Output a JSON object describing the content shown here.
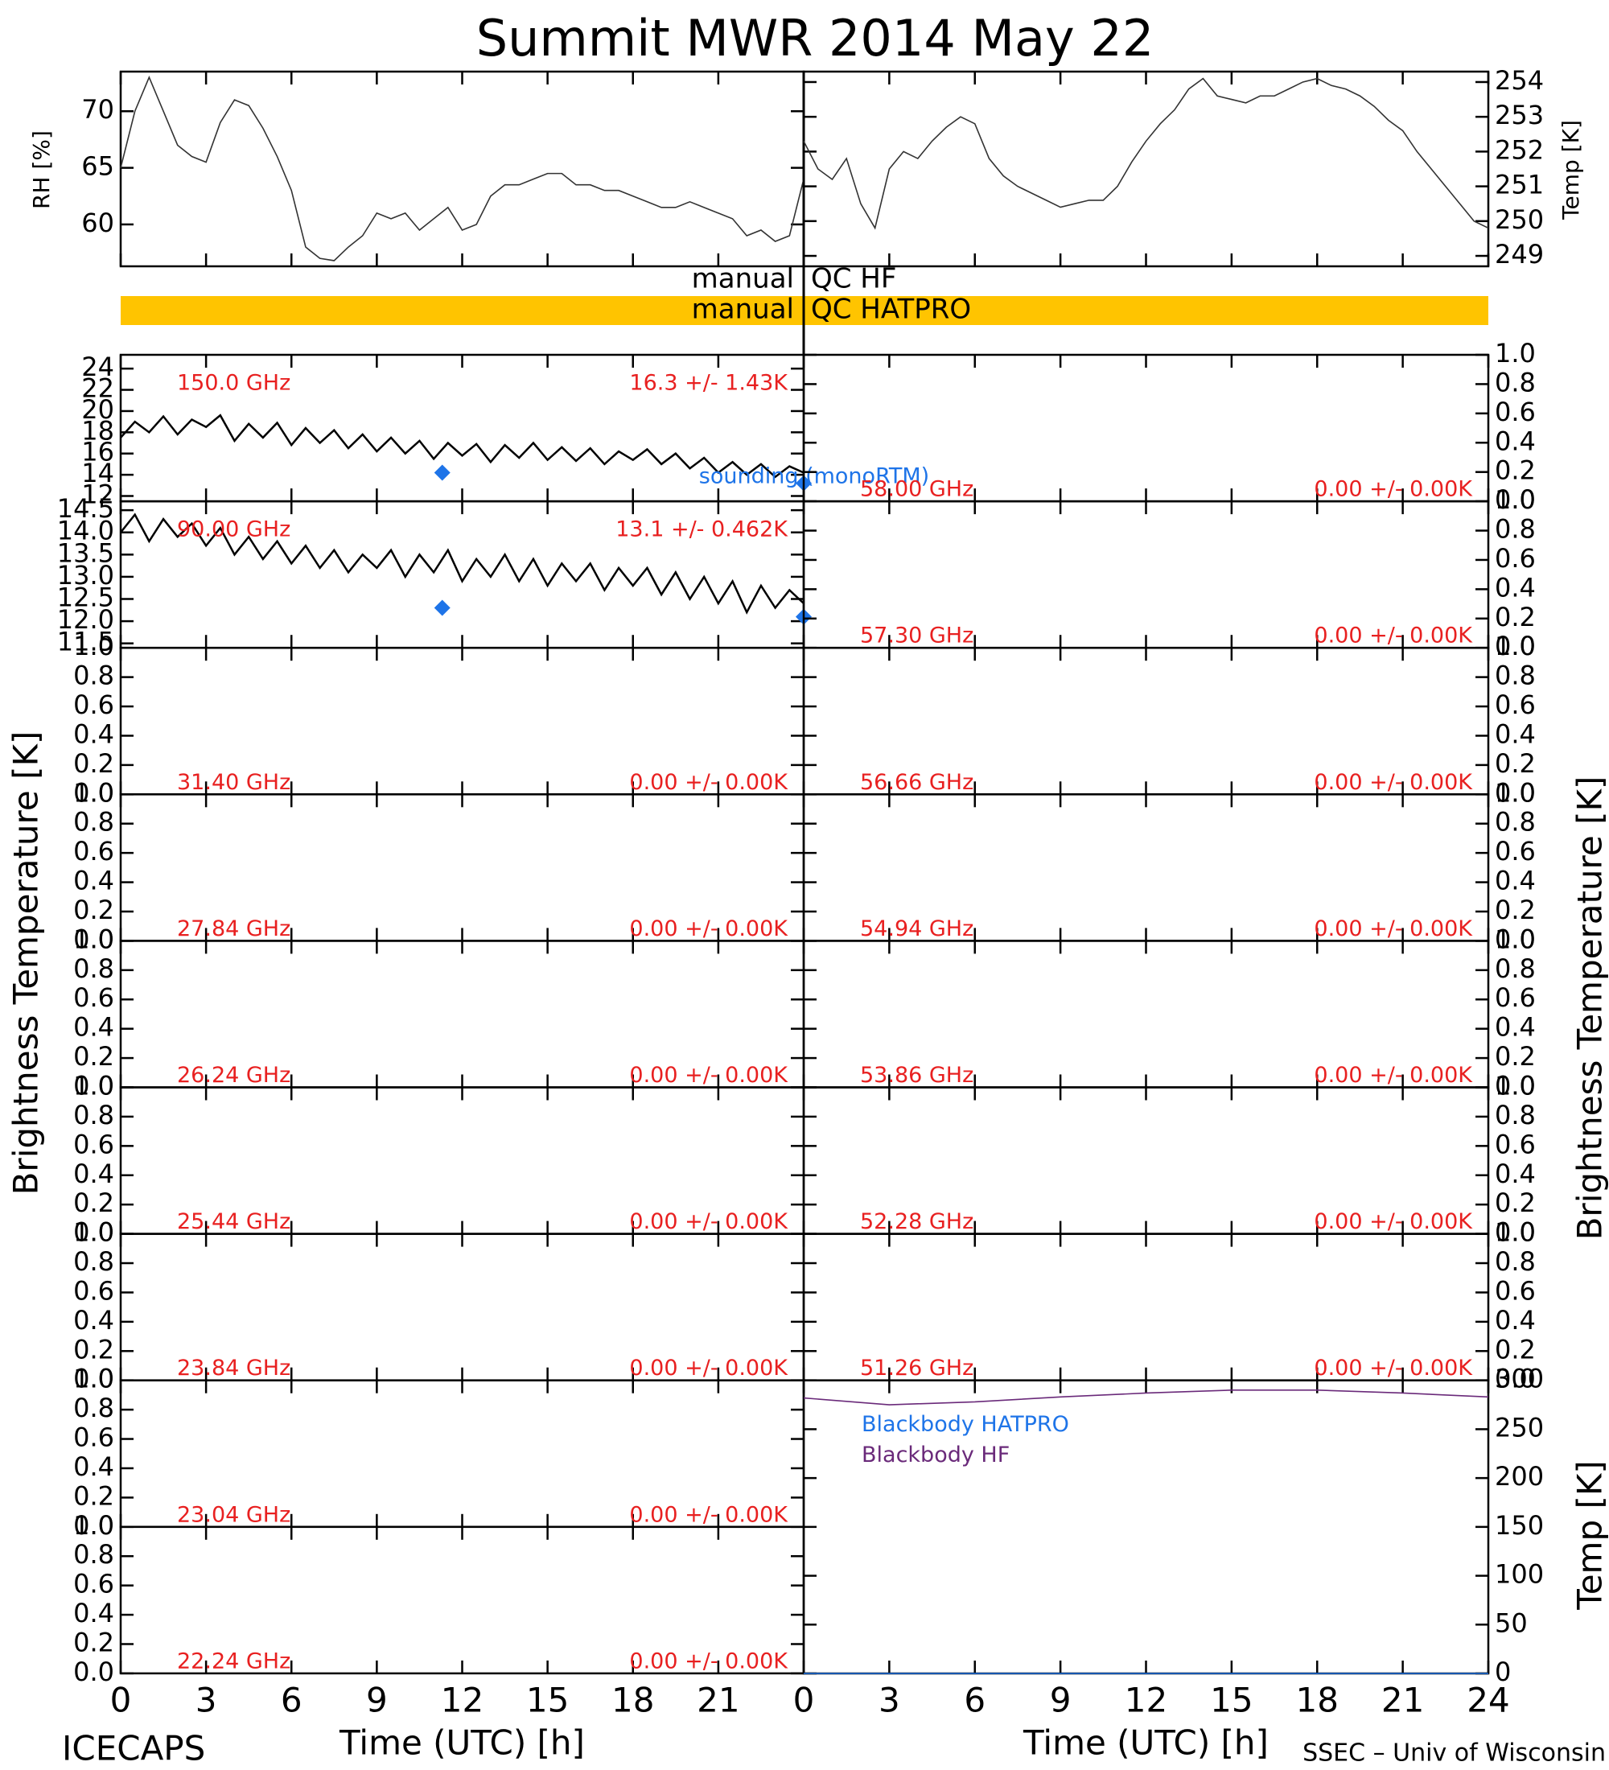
{
  "title": "Summit MWR 2014 May 22",
  "footer_left": "ICECAPS",
  "footer_right": "SSEC – Univ of Wisconsin",
  "ylabel_left": "Brightness Temperature [K]",
  "ylabel_right": "Brightness Temperature [K]",
  "qc": [
    {
      "left": "manual",
      "right": "QC HF"
    },
    {
      "left": "manual",
      "right": "QC HATPRO",
      "color": "#ffc400"
    }
  ],
  "chart_data": [
    {
      "type": "line",
      "ylabel": "RH [%]",
      "xlim": [
        0,
        24
      ],
      "ylim": [
        56.3,
        73.5
      ],
      "yticks": [
        60,
        65,
        70
      ],
      "x": [
        0,
        0.5,
        1,
        1.5,
        2,
        2.5,
        3,
        3.5,
        4,
        4.5,
        5,
        5.5,
        6,
        6.5,
        7,
        7.5,
        8,
        8.5,
        9,
        9.5,
        10,
        10.5,
        11,
        11.5,
        12,
        12.5,
        13,
        13.5,
        14,
        14.5,
        15,
        15.5,
        16,
        16.5,
        17,
        17.5,
        18,
        18.5,
        19,
        19.5,
        20,
        20.5,
        21,
        21.5,
        22,
        22.5,
        23,
        23.5,
        24
      ],
      "series": [
        {
          "color": "#333333",
          "values": [
            65,
            70,
            73,
            70,
            67,
            66,
            65.5,
            69,
            71,
            70.5,
            68.5,
            66,
            63,
            58,
            57,
            56.8,
            58,
            59,
            61,
            60.5,
            61,
            59.5,
            60.5,
            61.5,
            59.5,
            60,
            62.5,
            63.5,
            63.5,
            64,
            64.5,
            64.5,
            63.5,
            63.5,
            63,
            63,
            62.5,
            62,
            61.5,
            61.5,
            62,
            61.5,
            61,
            60.5,
            59,
            59.5,
            58.5,
            59,
            64
          ]
        }
      ]
    },
    {
      "type": "line",
      "ylabel": "Temp [K]",
      "xlim": [
        0,
        24
      ],
      "ylim": [
        248.7,
        254.3
      ],
      "yticks": [
        249,
        250,
        251,
        252,
        253,
        254
      ],
      "x": [
        0,
        0.5,
        1,
        1.5,
        2,
        2.5,
        3,
        3.5,
        4,
        4.5,
        5,
        5.5,
        6,
        6.5,
        7,
        7.5,
        8,
        8.5,
        9,
        9.5,
        10,
        10.5,
        11,
        11.5,
        12,
        12.5,
        13,
        13.5,
        14,
        14.5,
        15,
        15.5,
        16,
        16.5,
        17,
        17.5,
        18,
        18.5,
        19,
        19.5,
        20,
        20.5,
        21,
        21.5,
        22,
        22.5,
        23,
        23.5,
        24
      ],
      "series": [
        {
          "color": "#333333",
          "values": [
            252.3,
            251.5,
            251.2,
            251.8,
            250.5,
            249.8,
            251.5,
            252,
            251.8,
            252.3,
            252.7,
            253,
            252.8,
            251.8,
            251.3,
            251,
            250.8,
            250.6,
            250.4,
            250.5,
            250.6,
            250.6,
            251,
            251.7,
            252.3,
            252.8,
            253.2,
            253.8,
            254.1,
            253.6,
            253.5,
            253.4,
            253.6,
            253.6,
            253.8,
            254,
            254.1,
            253.9,
            253.8,
            253.6,
            253.3,
            252.9,
            252.6,
            252,
            251.5,
            251,
            250.5,
            250,
            249.8
          ]
        }
      ]
    },
    {
      "type": "line",
      "label": "150.0 GHz",
      "stat": "16.3 +/-  1.43K",
      "xlim": [
        0,
        24
      ],
      "ylim": [
        11.5,
        25.3
      ],
      "yticks": [
        12,
        14,
        16,
        18,
        20,
        22,
        24
      ],
      "x": [
        0,
        0.5,
        1,
        1.5,
        2,
        2.5,
        3,
        3.5,
        4,
        4.5,
        5,
        5.5,
        6,
        6.5,
        7,
        7.5,
        8,
        8.5,
        9,
        9.5,
        10,
        10.5,
        11,
        11.5,
        12,
        12.5,
        13,
        13.5,
        14,
        14.5,
        15,
        15.5,
        16,
        16.5,
        17,
        17.5,
        18,
        18.5,
        19,
        19.5,
        20,
        20.5,
        21,
        21.5,
        22,
        22.5,
        23,
        23.5,
        24
      ],
      "series": [
        {
          "color": "#000000",
          "values": [
            17.5,
            19,
            18,
            19.5,
            17.8,
            19.2,
            18.5,
            19.6,
            17.2,
            18.8,
            17.5,
            18.9,
            16.8,
            18.4,
            17,
            18.2,
            16.5,
            17.8,
            16.2,
            17.5,
            16,
            17.2,
            15.5,
            17,
            15.8,
            16.9,
            15.2,
            16.8,
            15.6,
            17,
            15.4,
            16.6,
            15.3,
            16.5,
            15,
            16.2,
            15.4,
            16.4,
            15,
            16,
            14.6,
            15.6,
            14.2,
            15.2,
            14,
            15,
            13.8,
            14.8,
            14.2
          ]
        },
        {
          "name": "sounding (monoRTM)",
          "color": "#1e74e8",
          "marker": "diamond",
          "x": [
            11.3,
            24
          ],
          "values": [
            14.2,
            13.2
          ]
        }
      ]
    },
    {
      "type": "line",
      "label": "90.00 GHz",
      "stat": "13.1 +/- 0.462K",
      "xlim": [
        0,
        24
      ],
      "ylim": [
        11.4,
        14.7
      ],
      "yticks": [
        11.5,
        {
          "value": 12,
          "label": "12.0"
        },
        12.5,
        {
          "value": 13,
          "label": "13.0"
        },
        13.5,
        {
          "value": 14,
          "label": "14.0"
        },
        14.5
      ],
      "x": [
        0,
        0.5,
        1,
        1.5,
        2,
        2.5,
        3,
        3.5,
        4,
        4.5,
        5,
        5.5,
        6,
        6.5,
        7,
        7.5,
        8,
        8.5,
        9,
        9.5,
        10,
        10.5,
        11,
        11.5,
        12,
        12.5,
        13,
        13.5,
        14,
        14.5,
        15,
        15.5,
        16,
        16.5,
        17,
        17.5,
        18,
        18.5,
        19,
        19.5,
        20,
        20.5,
        21,
        21.5,
        22,
        22.5,
        23,
        23.5,
        24
      ],
      "series": [
        {
          "color": "#000000",
          "values": [
            14.0,
            14.4,
            13.8,
            14.3,
            13.9,
            14.2,
            13.7,
            14.1,
            13.5,
            13.9,
            13.4,
            13.8,
            13.3,
            13.7,
            13.2,
            13.6,
            13.1,
            13.5,
            13.2,
            13.6,
            13.0,
            13.5,
            13.1,
            13.6,
            12.9,
            13.4,
            13.0,
            13.5,
            12.9,
            13.4,
            12.8,
            13.3,
            12.9,
            13.3,
            12.7,
            13.2,
            12.8,
            13.2,
            12.6,
            13.1,
            12.5,
            13.0,
            12.4,
            12.9,
            12.2,
            12.8,
            12.3,
            12.7,
            12.4
          ]
        },
        {
          "color": "#1e74e8",
          "marker": "diamond",
          "x": [
            11.3,
            24
          ],
          "values": [
            12.3,
            12.1
          ]
        }
      ]
    },
    {
      "type": "line",
      "label": "31.40 GHz",
      "stat": "0.00 +/- 0.00K",
      "xlim": [
        0,
        24
      ],
      "ylim": [
        0,
        1
      ],
      "yticks": [
        {
          "value": 0,
          "label": "0.0"
        },
        0.2,
        0.4,
        0.6,
        0.8,
        {
          "value": 1,
          "label": "1.0"
        }
      ]
    },
    {
      "type": "line",
      "label": "27.84 GHz",
      "stat": "0.00 +/- 0.00K",
      "xlim": [
        0,
        24
      ],
      "ylim": [
        0,
        1
      ],
      "yticks": [
        {
          "value": 0,
          "label": "0.0"
        },
        0.2,
        0.4,
        0.6,
        0.8,
        {
          "value": 1,
          "label": "1.0"
        }
      ]
    },
    {
      "type": "line",
      "label": "26.24 GHz",
      "stat": "0.00 +/- 0.00K",
      "xlim": [
        0,
        24
      ],
      "ylim": [
        0,
        1
      ],
      "yticks": [
        {
          "value": 0,
          "label": "0.0"
        },
        0.2,
        0.4,
        0.6,
        0.8,
        {
          "value": 1,
          "label": "1.0"
        }
      ]
    },
    {
      "type": "line",
      "label": "25.44 GHz",
      "stat": "0.00 +/- 0.00K",
      "xlim": [
        0,
        24
      ],
      "ylim": [
        0,
        1
      ],
      "yticks": [
        {
          "value": 0,
          "label": "0.0"
        },
        0.2,
        0.4,
        0.6,
        0.8,
        {
          "value": 1,
          "label": "1.0"
        }
      ]
    },
    {
      "type": "line",
      "label": "23.84 GHz",
      "stat": "0.00 +/- 0.00K",
      "xlim": [
        0,
        24
      ],
      "ylim": [
        0,
        1
      ],
      "yticks": [
        {
          "value": 0,
          "label": "0.0"
        },
        0.2,
        0.4,
        0.6,
        0.8,
        {
          "value": 1,
          "label": "1.0"
        }
      ]
    },
    {
      "type": "line",
      "label": "23.04 GHz",
      "stat": "0.00 +/- 0.00K",
      "xlim": [
        0,
        24
      ],
      "ylim": [
        0,
        1
      ],
      "yticks": [
        {
          "value": 0,
          "label": "0.0"
        },
        0.2,
        0.4,
        0.6,
        0.8,
        {
          "value": 1,
          "label": "1.0"
        }
      ]
    },
    {
      "type": "line",
      "label": "22.24 GHz",
      "stat": "0.00 +/- 0.00K",
      "xlabel": "Time (UTC) [h]",
      "xlim": [
        0,
        24
      ],
      "xticks": [
        0,
        3,
        6,
        9,
        12,
        15,
        18,
        21
      ],
      "ylim": [
        0,
        1
      ],
      "yticks": [
        {
          "value": 0,
          "label": "0.0"
        },
        0.2,
        0.4,
        0.6,
        0.8,
        {
          "value": 1,
          "label": "1.0"
        }
      ]
    },
    {
      "type": "line",
      "label": "58.00 GHz",
      "stat": "0.00 +/- 0.00K",
      "xlim": [
        0,
        24
      ],
      "ylim": [
        0,
        1
      ],
      "yticks": [
        {
          "value": 0,
          "label": "0.0"
        },
        0.2,
        0.4,
        0.6,
        0.8,
        {
          "value": 1,
          "label": "1.0"
        }
      ]
    },
    {
      "type": "line",
      "label": "57.30 GHz",
      "stat": "0.00 +/- 0.00K",
      "xlim": [
        0,
        24
      ],
      "ylim": [
        0,
        1
      ],
      "yticks": [
        {
          "value": 0,
          "label": "0.0"
        },
        0.2,
        0.4,
        0.6,
        0.8,
        {
          "value": 1,
          "label": "1.0"
        }
      ]
    },
    {
      "type": "line",
      "label": "56.66 GHz",
      "stat": "0.00 +/- 0.00K",
      "xlim": [
        0,
        24
      ],
      "ylim": [
        0,
        1
      ],
      "yticks": [
        {
          "value": 0,
          "label": "0.0"
        },
        0.2,
        0.4,
        0.6,
        0.8,
        {
          "value": 1,
          "label": "1.0"
        }
      ]
    },
    {
      "type": "line",
      "label": "54.94 GHz",
      "stat": "0.00 +/- 0.00K",
      "xlim": [
        0,
        24
      ],
      "ylim": [
        0,
        1
      ],
      "yticks": [
        {
          "value": 0,
          "label": "0.0"
        },
        0.2,
        0.4,
        0.6,
        0.8,
        {
          "value": 1,
          "label": "1.0"
        }
      ]
    },
    {
      "type": "line",
      "label": "53.86 GHz",
      "stat": "0.00 +/- 0.00K",
      "xlim": [
        0,
        24
      ],
      "ylim": [
        0,
        1
      ],
      "yticks": [
        {
          "value": 0,
          "label": "0.0"
        },
        0.2,
        0.4,
        0.6,
        0.8,
        {
          "value": 1,
          "label": "1.0"
        }
      ]
    },
    {
      "type": "line",
      "label": "52.28 GHz",
      "stat": "0.00 +/- 0.00K",
      "xlim": [
        0,
        24
      ],
      "ylim": [
        0,
        1
      ],
      "yticks": [
        {
          "value": 0,
          "label": "0.0"
        },
        0.2,
        0.4,
        0.6,
        0.8,
        {
          "value": 1,
          "label": "1.0"
        }
      ]
    },
    {
      "type": "line",
      "label": "51.26 GHz",
      "stat": "0.00 +/- 0.00K",
      "xlim": [
        0,
        24
      ],
      "ylim": [
        0,
        1
      ],
      "yticks": [
        {
          "value": 0,
          "label": "0.0"
        },
        0.2,
        0.4,
        0.6,
        0.8,
        {
          "value": 1,
          "label": "1.0"
        }
      ]
    },
    {
      "type": "line",
      "ylabel": "Temp [K]",
      "xlabel": "Time (UTC) [h]",
      "xlim": [
        0,
        24
      ],
      "xticks": [
        0,
        3,
        6,
        9,
        12,
        15,
        18,
        21,
        24
      ],
      "ylim": [
        0,
        300
      ],
      "yticks": [
        0,
        50,
        100,
        150,
        200,
        250,
        300
      ],
      "x": [
        0,
        3,
        6,
        9,
        12,
        15,
        18,
        21,
        24
      ],
      "series": [
        {
          "name": "Blackbody HATPRO",
          "color": "#1e74e8",
          "values": [
            0,
            0,
            0,
            0,
            0,
            0,
            0,
            0,
            0
          ]
        },
        {
          "name": "Blackbody HF",
          "color": "#6a2a7a",
          "values": [
            282,
            275,
            278,
            283,
            287,
            290,
            290,
            287,
            283
          ]
        }
      ]
    }
  ]
}
